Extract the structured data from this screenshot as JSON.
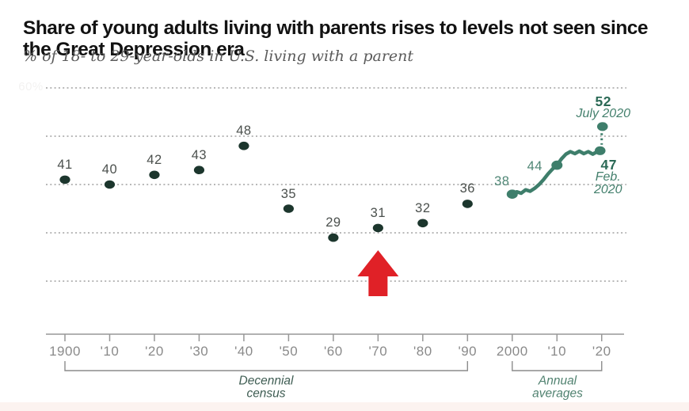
{
  "header": {
    "title": "Share of young adults living with parents rises to levels not seen since the Great Depression era",
    "subtitle": "% of 18- to 29-year-olds in U.S. living with a parent"
  },
  "chart_data": {
    "type": "scatter",
    "title": "Share of young adults living with parents rises to levels not seen since the Great Depression era",
    "ylabel": "% of 18- to 29-year-olds in U.S. living with a parent",
    "ylim": [
      15,
      62
    ],
    "grid": "dotted-horizontal",
    "y_axis_label": "60%",
    "y_gridlines": [
      60,
      50,
      40,
      30,
      20
    ],
    "x_tick_labels": [
      "1900",
      "'10",
      "'20",
      "'30",
      "'40",
      "'50",
      "'60",
      "'70",
      "'80",
      "'90",
      "2000",
      "'10",
      "'20"
    ],
    "decennial": {
      "categories": [
        "1900",
        "1910",
        "1920",
        "1930",
        "1940",
        "1950",
        "1960",
        "1970",
        "1980",
        "1990"
      ],
      "values": [
        41,
        40,
        42,
        43,
        48,
        35,
        29,
        31,
        32,
        36
      ]
    },
    "annual": {
      "years": [
        2000,
        2001,
        2002,
        2003,
        2004,
        2005,
        2006,
        2007,
        2008,
        2009,
        2010,
        2011,
        2012,
        2013,
        2014,
        2015,
        2016,
        2017,
        2018,
        2019,
        2020
      ],
      "values": [
        38,
        38.5,
        38.2,
        38.9,
        38.6,
        39.2,
        40,
        41,
        42.2,
        43.2,
        44,
        45.3,
        46.3,
        46.8,
        46.4,
        46.9,
        46.4,
        46.8,
        46.3,
        46.8,
        47
      ],
      "marked": [
        {
          "year": 2000,
          "value": 38,
          "label": "38"
        },
        {
          "year": 2010,
          "value": 44,
          "label": "44"
        }
      ],
      "endpoints": [
        {
          "label": "47",
          "sublabel": "Feb.\n2020",
          "value": 47,
          "connector": "line-end"
        },
        {
          "label": "52",
          "sublabel": "July 2020",
          "value": 52,
          "connector": "dotted-above"
        }
      ]
    },
    "groups": [
      {
        "label": "Decennial\ncensus",
        "from_tick": 0,
        "to_tick": 9
      },
      {
        "label": "Annual\naverages",
        "from_tick": 10,
        "to_tick": 12
      }
    ],
    "arrow_annotation": {
      "target_year": 1970,
      "target_value_label": "31"
    }
  },
  "colors": {
    "decennial_dot": "#1c362d",
    "annual_line": "#3e7e6b",
    "grid": "#a0a0a0",
    "axis": "#979797",
    "bracket": "#8c8c8c",
    "footer_strip": "#fcf3f0",
    "arrow_red": "#e02127"
  }
}
